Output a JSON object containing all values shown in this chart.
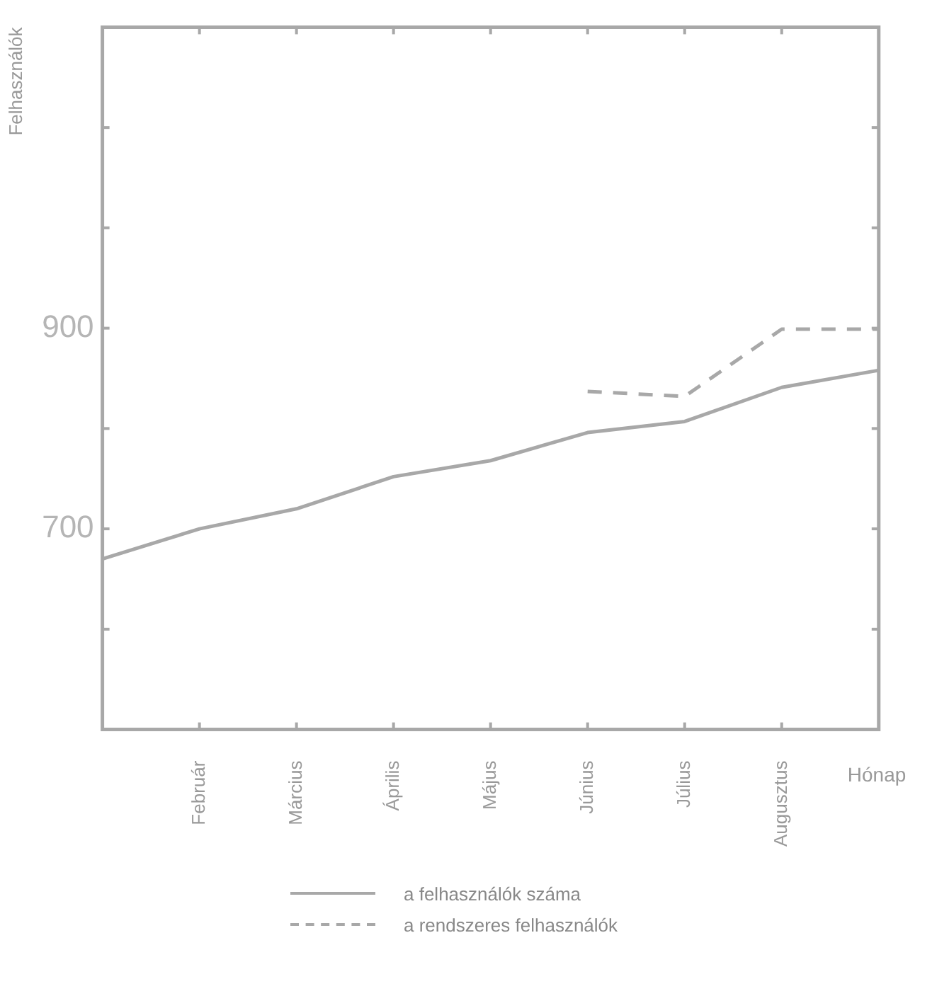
{
  "chart_data": {
    "type": "line",
    "xlabel": "Hónap",
    "ylabel": "Felhasználók",
    "categories": [
      null,
      "Február",
      "Március",
      "Április",
      "Május",
      "Június",
      "Július",
      "Augusztus",
      null
    ],
    "ylim": [
      500,
      1200
    ],
    "yticks": [
      {
        "value": 500,
        "label": null
      },
      {
        "value": 600,
        "label": null
      },
      700,
      {
        "value": 800,
        "label": null
      },
      900,
      {
        "value": 1000,
        "label": null
      },
      {
        "value": 1100,
        "label": null
      },
      {
        "value": 1200,
        "label": null
      }
    ],
    "series": [
      {
        "name": "a felhasználók száma",
        "color": "#a8a8a8",
        "line_style": "solid",
        "values": [
          670,
          700,
          720,
          752,
          768,
          796,
          807,
          841,
          858
        ]
      },
      {
        "name": "a rendszeres felhasználók",
        "color": "#a8a8a8",
        "line_style": "dashed",
        "values": [
          null,
          null,
          null,
          null,
          null,
          837,
          832,
          899,
          899
        ]
      }
    ],
    "grid": false,
    "legend": "bottom",
    "marker": "none"
  }
}
